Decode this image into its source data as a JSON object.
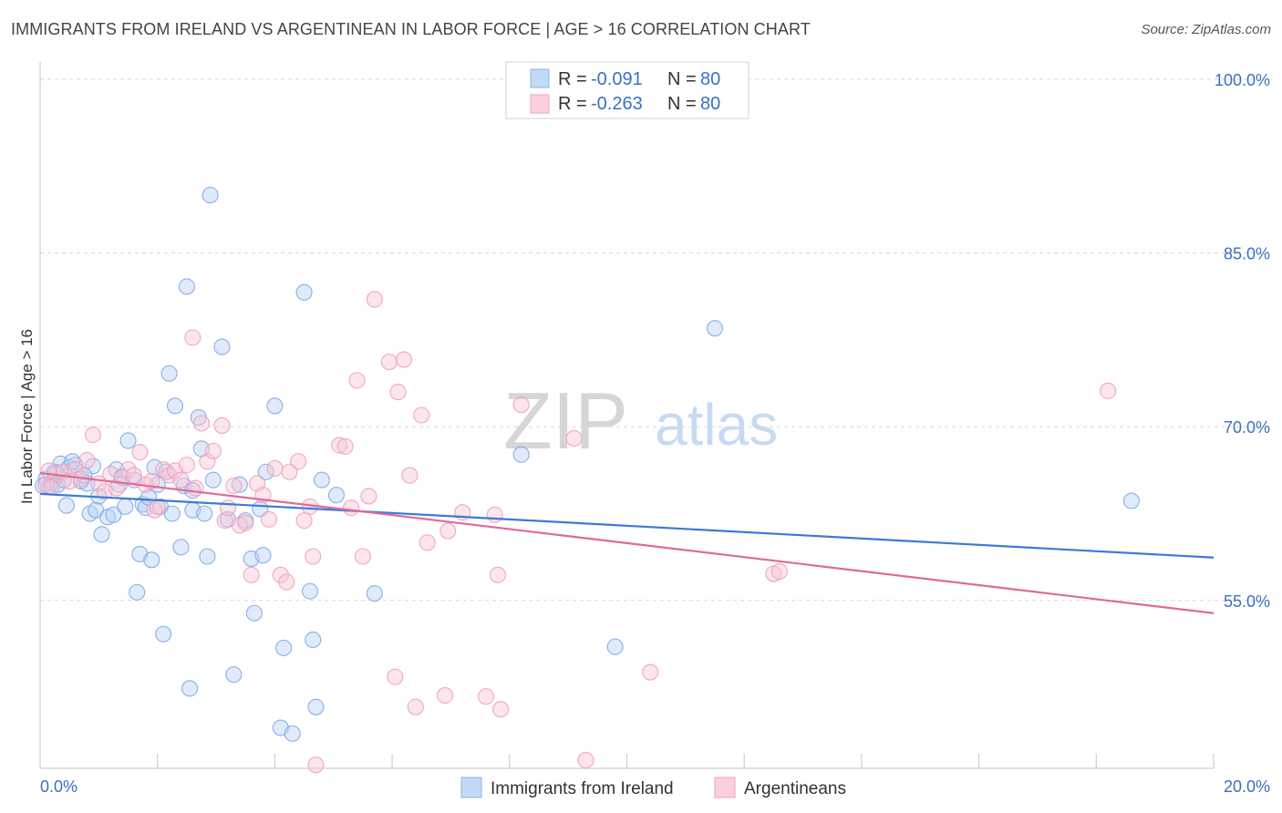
{
  "header": {
    "title": "IMMIGRANTS FROM IRELAND VS ARGENTINEAN IN LABOR FORCE | AGE > 16 CORRELATION CHART",
    "source": "Source: ZipAtlas.com"
  },
  "watermark": {
    "part1": "ZIP",
    "part2": "atlas"
  },
  "colors": {
    "blue_point": "#a8c8f0",
    "blue_line": "#3a7bd5",
    "pink_point": "#f5b8cb",
    "pink_line": "#e06a98",
    "axis_label": "#3a6fc4",
    "grid": "#d9d9d9"
  },
  "legend_box": {
    "rows": [
      {
        "r_label": "R = ",
        "r_value": "-0.091",
        "n_label": "N = ",
        "n_value": "80"
      },
      {
        "r_label": "R = ",
        "r_value": "-0.263",
        "n_label": "N = ",
        "n_value": "80"
      }
    ]
  },
  "chart_data": {
    "type": "scatter",
    "title": "IMMIGRANTS FROM IRELAND VS ARGENTINEAN IN LABOR FORCE | AGE > 16 CORRELATION CHART",
    "xlabel": "",
    "ylabel": "In Labor Force | Age > 16",
    "xlim": [
      0,
      20
    ],
    "ylim": [
      40.5,
      101.5
    ],
    "x_tick_labels": {
      "min": "0.0%",
      "max": "20.0%"
    },
    "y_ticks": [
      55,
      70,
      85,
      100
    ],
    "y_tick_labels": [
      "55.0%",
      "70.0%",
      "85.0%",
      "100.0%"
    ],
    "grid": true,
    "legend_position": "bottom-center",
    "series": [
      {
        "name": "Immigrants from Ireland",
        "color": "#a8c8f0",
        "r": -0.091,
        "n": 80,
        "trend": [
          [
            0,
            64.2
          ],
          [
            20,
            58.7
          ]
        ],
        "points": [
          [
            0.1,
            65.5
          ],
          [
            0.15,
            64.8
          ],
          [
            0.2,
            65.2
          ],
          [
            0.25,
            66.0
          ],
          [
            0.3,
            65.0
          ],
          [
            0.35,
            66.8
          ],
          [
            0.4,
            65.4
          ],
          [
            0.45,
            63.2
          ],
          [
            0.5,
            66.5
          ],
          [
            0.6,
            66.7
          ],
          [
            0.7,
            65.3
          ],
          [
            0.8,
            65.1
          ],
          [
            0.85,
            62.5
          ],
          [
            0.9,
            66.6
          ],
          [
            0.95,
            62.8
          ],
          [
            1.05,
            60.7
          ],
          [
            1.15,
            62.2
          ],
          [
            1.25,
            62.4
          ],
          [
            1.3,
            66.3
          ],
          [
            1.4,
            65.7
          ],
          [
            1.45,
            63.1
          ],
          [
            1.5,
            68.8
          ],
          [
            1.6,
            65.4
          ],
          [
            1.65,
            55.7
          ],
          [
            1.7,
            59.0
          ],
          [
            1.75,
            63.3
          ],
          [
            1.8,
            63.0
          ],
          [
            1.85,
            63.9
          ],
          [
            1.9,
            58.5
          ],
          [
            1.95,
            66.5
          ],
          [
            2.0,
            65.0
          ],
          [
            2.05,
            63.1
          ],
          [
            2.1,
            52.1
          ],
          [
            2.15,
            66.1
          ],
          [
            2.2,
            74.6
          ],
          [
            2.25,
            62.5
          ],
          [
            2.3,
            71.8
          ],
          [
            2.4,
            59.6
          ],
          [
            2.45,
            64.9
          ],
          [
            2.5,
            82.1
          ],
          [
            2.55,
            47.4
          ],
          [
            2.6,
            62.8
          ],
          [
            2.7,
            70.8
          ],
          [
            2.75,
            68.1
          ],
          [
            2.8,
            62.5
          ],
          [
            2.85,
            58.8
          ],
          [
            2.9,
            90.0
          ],
          [
            2.95,
            65.4
          ],
          [
            3.1,
            76.9
          ],
          [
            3.2,
            62.0
          ],
          [
            3.3,
            48.6
          ],
          [
            3.4,
            65.0
          ],
          [
            3.5,
            61.9
          ],
          [
            3.6,
            58.6
          ],
          [
            3.65,
            53.9
          ],
          [
            3.75,
            62.9
          ],
          [
            3.8,
            58.9
          ],
          [
            3.85,
            66.1
          ],
          [
            4.0,
            71.8
          ],
          [
            4.1,
            44.0
          ],
          [
            4.15,
            50.9
          ],
          [
            4.3,
            43.5
          ],
          [
            4.5,
            81.6
          ],
          [
            4.6,
            55.8
          ],
          [
            4.65,
            51.6
          ],
          [
            4.7,
            45.8
          ],
          [
            4.8,
            65.4
          ],
          [
            5.05,
            64.1
          ],
          [
            5.7,
            55.6
          ],
          [
            8.2,
            67.6
          ],
          [
            9.8,
            51.0
          ],
          [
            11.5,
            78.5
          ],
          [
            18.6,
            63.6
          ],
          [
            0.05,
            64.9
          ],
          [
            0.25,
            66.1
          ],
          [
            0.55,
            67.0
          ],
          [
            0.75,
            65.8
          ],
          [
            1.0,
            64.0
          ],
          [
            1.35,
            65.0
          ],
          [
            2.6,
            64.5
          ]
        ]
      },
      {
        "name": "Argentineans",
        "color": "#f5b8cb",
        "r": -0.263,
        "n": 80,
        "trend": [
          [
            0,
            66.0
          ],
          [
            20,
            53.9
          ]
        ],
        "points": [
          [
            0.1,
            65.0
          ],
          [
            0.2,
            64.8
          ],
          [
            0.3,
            65.9
          ],
          [
            0.4,
            66.1
          ],
          [
            0.5,
            65.3
          ],
          [
            0.6,
            66.3
          ],
          [
            0.7,
            65.5
          ],
          [
            0.8,
            67.1
          ],
          [
            0.9,
            69.3
          ],
          [
            1.0,
            65.1
          ],
          [
            1.1,
            64.4
          ],
          [
            1.2,
            65.9
          ],
          [
            1.3,
            64.7
          ],
          [
            1.4,
            65.6
          ],
          [
            1.5,
            66.3
          ],
          [
            1.6,
            65.8
          ],
          [
            1.7,
            67.8
          ],
          [
            1.8,
            65.0
          ],
          [
            1.9,
            65.3
          ],
          [
            1.95,
            62.8
          ],
          [
            2.0,
            63.1
          ],
          [
            2.1,
            66.3
          ],
          [
            2.2,
            65.8
          ],
          [
            2.3,
            66.2
          ],
          [
            2.4,
            65.4
          ],
          [
            2.5,
            66.7
          ],
          [
            2.6,
            77.7
          ],
          [
            2.65,
            64.7
          ],
          [
            2.75,
            70.3
          ],
          [
            2.85,
            67.0
          ],
          [
            2.95,
            67.9
          ],
          [
            3.1,
            70.1
          ],
          [
            3.15,
            61.9
          ],
          [
            3.2,
            63.0
          ],
          [
            3.3,
            64.9
          ],
          [
            3.4,
            61.5
          ],
          [
            3.5,
            61.7
          ],
          [
            3.6,
            57.2
          ],
          [
            3.7,
            65.1
          ],
          [
            3.8,
            64.1
          ],
          [
            3.9,
            62.0
          ],
          [
            4.0,
            66.4
          ],
          [
            4.1,
            57.2
          ],
          [
            4.2,
            56.6
          ],
          [
            4.25,
            66.1
          ],
          [
            4.4,
            67.0
          ],
          [
            4.5,
            61.9
          ],
          [
            4.6,
            63.1
          ],
          [
            4.65,
            58.8
          ],
          [
            4.7,
            40.8
          ],
          [
            5.1,
            68.4
          ],
          [
            5.2,
            68.3
          ],
          [
            5.3,
            63.0
          ],
          [
            5.4,
            74.0
          ],
          [
            5.5,
            58.8
          ],
          [
            5.6,
            64.0
          ],
          [
            5.7,
            81.0
          ],
          [
            5.95,
            75.6
          ],
          [
            6.05,
            48.4
          ],
          [
            6.1,
            73.0
          ],
          [
            6.2,
            75.8
          ],
          [
            6.3,
            65.8
          ],
          [
            6.4,
            45.8
          ],
          [
            6.5,
            71.0
          ],
          [
            6.6,
            60.0
          ],
          [
            6.9,
            46.8
          ],
          [
            6.95,
            61.0
          ],
          [
            7.2,
            62.6
          ],
          [
            7.6,
            46.7
          ],
          [
            7.75,
            62.4
          ],
          [
            7.8,
            57.2
          ],
          [
            7.85,
            45.6
          ],
          [
            8.2,
            71.9
          ],
          [
            9.1,
            69.0
          ],
          [
            9.3,
            41.2
          ],
          [
            10.4,
            48.8
          ],
          [
            12.5,
            57.3
          ],
          [
            12.6,
            57.5
          ],
          [
            18.2,
            73.1
          ],
          [
            0.15,
            66.2
          ]
        ]
      }
    ]
  }
}
